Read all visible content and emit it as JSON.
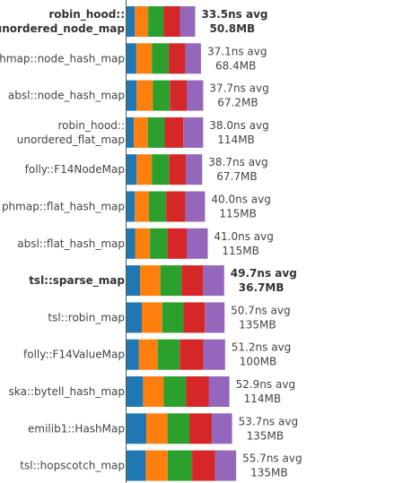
{
  "chart_data": {
    "type": "bar",
    "orientation": "horizontal",
    "stacked": true,
    "unit": "ns",
    "xlim": [
      0,
      60
    ],
    "grid": false,
    "legend": "none",
    "segment_colors": [
      "#1f77b4",
      "#ff7f0e",
      "#2ca02c",
      "#d62728",
      "#9467bd"
    ],
    "rows": [
      {
        "name_lines": [
          "robin_hood::",
          "unordered_node_map"
        ],
        "highlight": true,
        "segments": [
          2.7,
          4.4,
          5.0,
          5.4,
          5.0
        ],
        "avg_text": "33.5ns avg",
        "mem_text": "50.8MB"
      },
      {
        "name_lines": [
          "phmap::node_hash_map"
        ],
        "highlight": false,
        "segments": [
          3.2,
          5.1,
          5.5,
          5.5,
          5.1
        ],
        "avg_text": "37.1ns avg",
        "mem_text": "68.4MB"
      },
      {
        "name_lines": [
          "absl::node_hash_map"
        ],
        "highlight": false,
        "segments": [
          3.3,
          5.3,
          5.6,
          5.5,
          5.4
        ],
        "avg_text": "37.7ns avg",
        "mem_text": "67.2MB"
      },
      {
        "name_lines": [
          "robin_hood::",
          "unordered_flat_map"
        ],
        "highlight": false,
        "segments": [
          2.4,
          4.6,
          5.5,
          6.1,
          6.5
        ],
        "avg_text": "38.0ns avg",
        "mem_text": "114MB"
      },
      {
        "name_lines": [
          "folly::F14NodeMap"
        ],
        "highlight": false,
        "segments": [
          3.3,
          5.0,
          5.6,
          5.6,
          5.3
        ],
        "avg_text": "38.7ns avg",
        "mem_text": "67.7MB"
      },
      {
        "name_lines": [
          "phmap::flat_hash_map"
        ],
        "highlight": false,
        "segments": [
          2.7,
          4.6,
          5.7,
          6.3,
          6.4
        ],
        "avg_text": "40.0ns avg",
        "mem_text": "115MB"
      },
      {
        "name_lines": [
          "absl::flat_hash_map"
        ],
        "highlight": false,
        "segments": [
          2.8,
          4.9,
          5.7,
          6.3,
          6.9
        ],
        "avg_text": "41.0ns avg",
        "mem_text": "115MB"
      },
      {
        "name_lines": [
          "tsl::sparse_map"
        ],
        "highlight": true,
        "segments": [
          4.5,
          6.6,
          6.9,
          7.1,
          6.9
        ],
        "avg_text": "49.7ns avg",
        "mem_text": "36.7MB"
      },
      {
        "name_lines": [
          "tsl::robin_map"
        ],
        "highlight": false,
        "segments": [
          5.1,
          6.6,
          6.9,
          7.1,
          6.4
        ],
        "avg_text": "50.7ns avg",
        "mem_text": "135MB"
      },
      {
        "name_lines": [
          "folly::F14ValueMap"
        ],
        "highlight": false,
        "segments": [
          4.0,
          6.3,
          7.1,
          7.8,
          7.1
        ],
        "avg_text": "51.2ns avg",
        "mem_text": "100MB"
      },
      {
        "name_lines": [
          "ska::bytell_hash_map"
        ],
        "highlight": false,
        "segments": [
          5.4,
          6.8,
          7.3,
          7.4,
          6.8
        ],
        "avg_text": "52.9ns avg",
        "mem_text": "114MB"
      },
      {
        "name_lines": [
          "emilib1::HashMap"
        ],
        "highlight": false,
        "segments": [
          6.5,
          6.9,
          7.2,
          7.4,
          6.6
        ],
        "avg_text": "53.7ns avg",
        "mem_text": "135MB"
      },
      {
        "name_lines": [
          "tsl::hopscotch_map"
        ],
        "highlight": false,
        "segments": [
          6.3,
          7.2,
          8.0,
          7.5,
          6.9
        ],
        "avg_text": "55.7ns avg",
        "mem_text": "135MB"
      }
    ]
  }
}
